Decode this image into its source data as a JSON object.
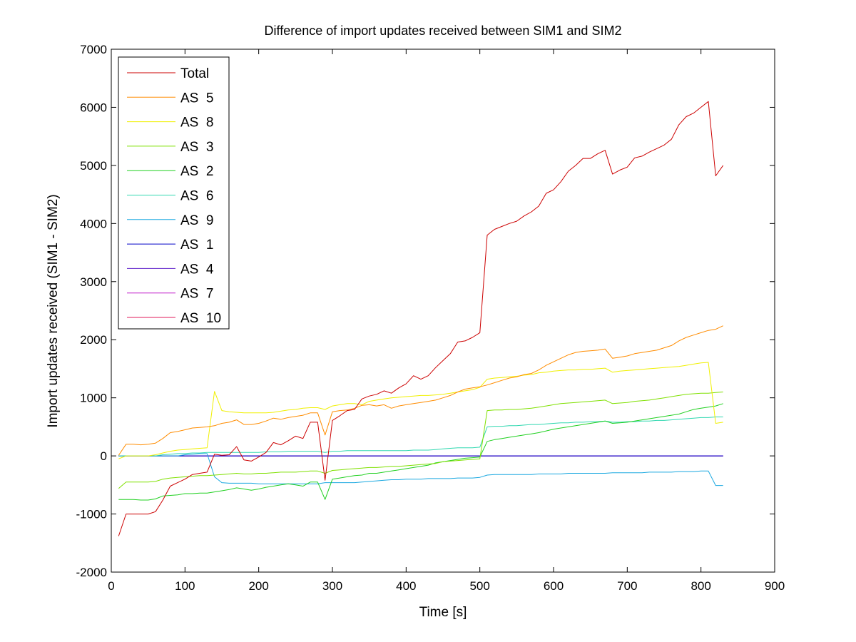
{
  "chart_data": {
    "type": "line",
    "title": "Difference of import updates received between SIM1 and SIM2",
    "xlabel": "Time [s]",
    "ylabel": "Import updates received (SIM1 - SIM2)",
    "xlim": [
      0,
      900
    ],
    "ylim": [
      -2000,
      7000
    ],
    "xticks": [
      "0",
      "100",
      "200",
      "300",
      "400",
      "500",
      "600",
      "700",
      "800",
      "900"
    ],
    "yticks": [
      "-2000",
      "-1000",
      "0",
      "1000",
      "2000",
      "3000",
      "4000",
      "5000",
      "6000",
      "7000"
    ],
    "grid": false,
    "legend_position": "top-left",
    "x": [
      10,
      20,
      30,
      40,
      50,
      60,
      70,
      80,
      90,
      100,
      110,
      120,
      130,
      140,
      150,
      160,
      170,
      180,
      190,
      200,
      210,
      220,
      230,
      240,
      250,
      260,
      270,
      280,
      290,
      300,
      310,
      320,
      330,
      340,
      350,
      360,
      370,
      380,
      390,
      400,
      410,
      420,
      430,
      440,
      450,
      460,
      470,
      480,
      490,
      500,
      510,
      520,
      530,
      540,
      550,
      560,
      570,
      580,
      590,
      600,
      610,
      620,
      630,
      640,
      650,
      660,
      670,
      680,
      690,
      700,
      710,
      720,
      730,
      740,
      750,
      760,
      770,
      780,
      790,
      800,
      810,
      820,
      830
    ],
    "series": [
      {
        "name": "Total",
        "color": "#cc0000",
        "values": [
          -1380,
          -1000,
          -1000,
          -1000,
          -1000,
          -960,
          -760,
          -520,
          -460,
          -400,
          -320,
          -300,
          -280,
          30,
          10,
          20,
          160,
          -70,
          -90,
          -20,
          60,
          230,
          190,
          260,
          340,
          300,
          580,
          580,
          -420,
          610,
          690,
          780,
          800,
          980,
          1030,
          1060,
          1120,
          1080,
          1170,
          1240,
          1380,
          1320,
          1380,
          1520,
          1640,
          1760,
          1960,
          1980,
          2040,
          2120,
          3800,
          3900,
          3950,
          4000,
          4040,
          4130,
          4200,
          4300,
          4520,
          4580,
          4720,
          4900,
          5000,
          5120,
          5120,
          5200,
          5260,
          4850,
          4920,
          4970,
          5130,
          5160,
          5230,
          5290,
          5350,
          5450,
          5700,
          5840,
          5900,
          6000,
          6100,
          4820,
          5000
        ]
      },
      {
        "name": "AS  5",
        "color": "#ff8c00",
        "values": [
          10,
          200,
          200,
          190,
          200,
          220,
          300,
          400,
          420,
          450,
          480,
          490,
          500,
          520,
          560,
          580,
          620,
          540,
          540,
          560,
          600,
          650,
          630,
          660,
          680,
          700,
          740,
          740,
          360,
          760,
          780,
          790,
          820,
          870,
          880,
          860,
          880,
          820,
          860,
          880,
          900,
          920,
          940,
          960,
          1000,
          1040,
          1100,
          1150,
          1170,
          1190,
          1220,
          1260,
          1300,
          1340,
          1360,
          1400,
          1420,
          1480,
          1560,
          1620,
          1680,
          1740,
          1780,
          1800,
          1810,
          1820,
          1840,
          1680,
          1700,
          1720,
          1760,
          1780,
          1800,
          1820,
          1860,
          1900,
          1980,
          2040,
          2080,
          2120,
          2160,
          2180,
          2240
        ]
      },
      {
        "name": "AS  8",
        "color": "#f0f000",
        "values": [
          -50,
          0,
          0,
          0,
          0,
          20,
          50,
          80,
          100,
          110,
          120,
          130,
          140,
          1110,
          780,
          760,
          750,
          740,
          740,
          740,
          740,
          750,
          770,
          790,
          800,
          820,
          830,
          830,
          800,
          860,
          880,
          900,
          900,
          880,
          940,
          960,
          980,
          1000,
          1010,
          1020,
          1030,
          1040,
          1040,
          1050,
          1060,
          1080,
          1100,
          1120,
          1140,
          1180,
          1320,
          1340,
          1350,
          1360,
          1370,
          1390,
          1400,
          1430,
          1440,
          1460,
          1470,
          1480,
          1480,
          1490,
          1490,
          1500,
          1510,
          1440,
          1460,
          1470,
          1480,
          1490,
          1500,
          1510,
          1520,
          1530,
          1540,
          1560,
          1580,
          1600,
          1610,
          560,
          580
        ]
      },
      {
        "name": "AS  3",
        "color": "#7fe000",
        "values": [
          -560,
          -450,
          -450,
          -450,
          -450,
          -440,
          -400,
          -380,
          -370,
          -360,
          -350,
          -340,
          -340,
          -330,
          -320,
          -310,
          -300,
          -310,
          -310,
          -300,
          -300,
          -290,
          -280,
          -280,
          -280,
          -270,
          -260,
          -260,
          -300,
          -250,
          -240,
          -230,
          -220,
          -210,
          -200,
          -200,
          -190,
          -180,
          -180,
          -170,
          -160,
          -150,
          -140,
          -130,
          -100,
          -90,
          -80,
          -70,
          -60,
          -50,
          780,
          790,
          790,
          800,
          800,
          810,
          820,
          840,
          860,
          880,
          900,
          910,
          920,
          930,
          940,
          950,
          960,
          900,
          910,
          920,
          940,
          950,
          960,
          980,
          1000,
          1020,
          1040,
          1060,
          1070,
          1080,
          1080,
          1090,
          1100
        ]
      },
      {
        "name": "AS  2",
        "color": "#20d020",
        "values": [
          -750,
          -750,
          -750,
          -760,
          -760,
          -740,
          -690,
          -680,
          -670,
          -650,
          -650,
          -640,
          -640,
          -620,
          -600,
          -580,
          -550,
          -570,
          -590,
          -570,
          -540,
          -520,
          -500,
          -480,
          -500,
          -520,
          -450,
          -450,
          -750,
          -400,
          -380,
          -360,
          -340,
          -330,
          -300,
          -300,
          -280,
          -260,
          -240,
          -220,
          -200,
          -180,
          -160,
          -120,
          -100,
          -80,
          -60,
          -40,
          -30,
          -20,
          250,
          280,
          300,
          320,
          340,
          360,
          380,
          400,
          430,
          460,
          480,
          500,
          520,
          540,
          560,
          580,
          600,
          560,
          570,
          580,
          600,
          620,
          640,
          660,
          680,
          700,
          720,
          760,
          800,
          820,
          840,
          860,
          900
        ]
      },
      {
        "name": "AS  6",
        "color": "#30d8b0",
        "values": [
          0,
          0,
          0,
          0,
          0,
          0,
          20,
          30,
          40,
          40,
          50,
          50,
          60,
          60,
          60,
          60,
          60,
          60,
          60,
          60,
          70,
          70,
          70,
          80,
          80,
          80,
          80,
          80,
          60,
          80,
          80,
          90,
          90,
          90,
          90,
          90,
          90,
          90,
          90,
          90,
          100,
          100,
          100,
          110,
          120,
          130,
          140,
          140,
          140,
          150,
          500,
          510,
          510,
          520,
          520,
          530,
          540,
          540,
          550,
          560,
          570,
          570,
          580,
          580,
          590,
          590,
          600,
          580,
          580,
          590,
          590,
          600,
          600,
          610,
          610,
          620,
          630,
          640,
          650,
          660,
          660,
          670,
          670
        ]
      },
      {
        "name": "AS  9",
        "color": "#1aa8e0",
        "values": [
          0,
          0,
          0,
          0,
          0,
          0,
          0,
          0,
          0,
          20,
          30,
          40,
          40,
          -360,
          -460,
          -470,
          -470,
          -470,
          -470,
          -480,
          -480,
          -480,
          -480,
          -480,
          -480,
          -480,
          -480,
          -480,
          -460,
          -460,
          -460,
          -460,
          -460,
          -450,
          -440,
          -430,
          -420,
          -410,
          -410,
          -400,
          -400,
          -400,
          -390,
          -390,
          -390,
          -390,
          -380,
          -380,
          -380,
          -370,
          -330,
          -320,
          -320,
          -320,
          -320,
          -320,
          -320,
          -310,
          -310,
          -310,
          -310,
          -300,
          -300,
          -300,
          -300,
          -300,
          -300,
          -290,
          -290,
          -290,
          -290,
          -290,
          -280,
          -280,
          -280,
          -280,
          -270,
          -270,
          -270,
          -260,
          -260,
          -510,
          -510
        ]
      },
      {
        "name": "AS  1",
        "color": "#0000c8",
        "values": [
          0,
          0,
          0,
          0,
          0,
          0,
          0,
          0,
          0,
          0,
          0,
          0,
          0,
          0,
          0,
          0,
          0,
          0,
          0,
          0,
          0,
          0,
          0,
          0,
          0,
          0,
          0,
          0,
          0,
          0,
          0,
          0,
          0,
          0,
          0,
          0,
          0,
          0,
          0,
          0,
          0,
          0,
          0,
          0,
          0,
          0,
          0,
          0,
          0,
          0,
          0,
          0,
          0,
          0,
          0,
          0,
          0,
          0,
          0,
          0,
          0,
          0,
          0,
          0,
          0,
          0,
          0,
          0,
          0,
          0,
          0,
          0,
          0,
          0,
          0,
          0,
          0,
          0,
          0,
          0,
          0,
          0,
          0
        ]
      },
      {
        "name": "AS  4",
        "color": "#5a18c8",
        "values": [
          0,
          0,
          0,
          0,
          0,
          0,
          0,
          0,
          0,
          0,
          0,
          0,
          0,
          0,
          0,
          0,
          0,
          0,
          0,
          0,
          0,
          0,
          0,
          0,
          0,
          0,
          0,
          0,
          0,
          0,
          0,
          0,
          0,
          0,
          0,
          0,
          0,
          0,
          0,
          0,
          0,
          0,
          0,
          0,
          0,
          0,
          0,
          0,
          0,
          0,
          0,
          0,
          0,
          0,
          0,
          0,
          0,
          0,
          0,
          0,
          0,
          0,
          0,
          0,
          0,
          0,
          0,
          0,
          0,
          0,
          0,
          0,
          0,
          0,
          0,
          0,
          0,
          0,
          0,
          0,
          0,
          0,
          0
        ]
      },
      {
        "name": "AS  7",
        "color": "#c018c8",
        "values": [
          0,
          0,
          0,
          0,
          0,
          0,
          0,
          0,
          0,
          0,
          0,
          0,
          0,
          0,
          0,
          0,
          0,
          0,
          0,
          0,
          0,
          0,
          0,
          0,
          0,
          0,
          0,
          0,
          0,
          0,
          0,
          0,
          0,
          0,
          0,
          0,
          0,
          0,
          0,
          0,
          0,
          0,
          0,
          0,
          0,
          0,
          0,
          0,
          0,
          0,
          0,
          0,
          0,
          0,
          0,
          0,
          0,
          0,
          0,
          0,
          0,
          0,
          0,
          0,
          0,
          0,
          0,
          0,
          0,
          0,
          0,
          0,
          0,
          0,
          0,
          0,
          0,
          0,
          0,
          0,
          0,
          0,
          0
        ]
      },
      {
        "name": "AS  10",
        "color": "#e0185a",
        "values": [
          0,
          0,
          0,
          0,
          0,
          0,
          0,
          0,
          0,
          0,
          0,
          0,
          0,
          0,
          0,
          0,
          0,
          0,
          0,
          0,
          0,
          0,
          0,
          0,
          0,
          0,
          0,
          0,
          0,
          0,
          0,
          0,
          0,
          0,
          0,
          0,
          0,
          0,
          0,
          0,
          0,
          0,
          0,
          0,
          0,
          0,
          0,
          0,
          0,
          0,
          0,
          0,
          0,
          0,
          0,
          0,
          0,
          0,
          0,
          0,
          0,
          0,
          0,
          0,
          0,
          0,
          0,
          0,
          0,
          0,
          0,
          0,
          0,
          0,
          0,
          0,
          0,
          0,
          0,
          0,
          0,
          0,
          0
        ]
      }
    ]
  }
}
